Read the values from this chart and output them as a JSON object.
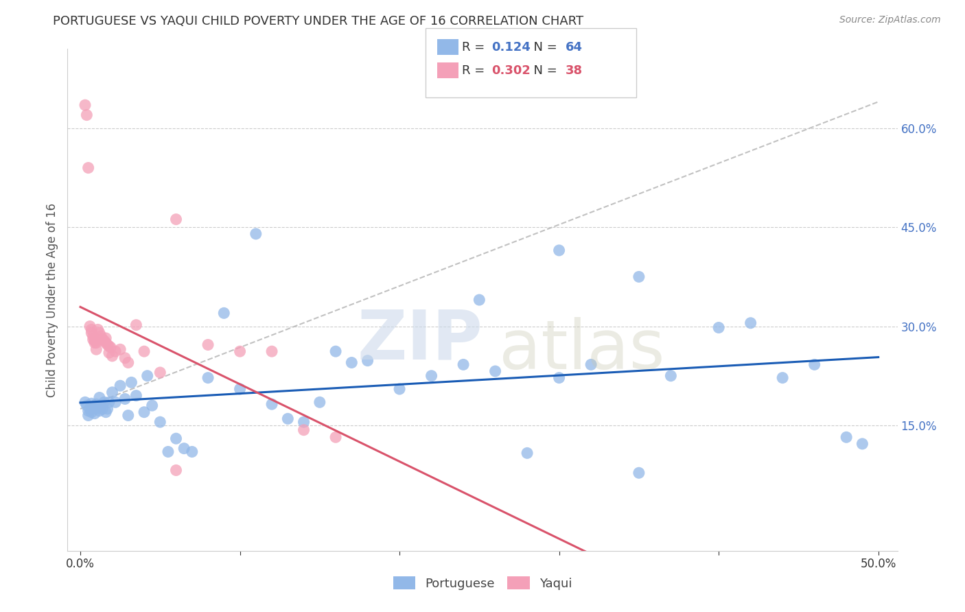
{
  "title": "PORTUGUESE VS YAQUI CHILD POVERTY UNDER THE AGE OF 16 CORRELATION CHART",
  "source": "Source: ZipAtlas.com",
  "ylabel": "Child Poverty Under the Age of 16",
  "xlim": [
    0.0,
    0.5
  ],
  "ylim": [
    0.0,
    0.7
  ],
  "blue_color": "#92b8e8",
  "pink_color": "#f4a0b8",
  "blue_line_color": "#1a5cb5",
  "pink_line_color": "#d9536b",
  "dash_line_color": "#bbbbbb",
  "bg_color": "#ffffff",
  "grid_color": "#cccccc",
  "portuguese_x": [
    0.003,
    0.004,
    0.005,
    0.005,
    0.006,
    0.007,
    0.007,
    0.008,
    0.009,
    0.01,
    0.01,
    0.011,
    0.012,
    0.012,
    0.013,
    0.014,
    0.015,
    0.016,
    0.017,
    0.018,
    0.02,
    0.022,
    0.025,
    0.028,
    0.03,
    0.032,
    0.035,
    0.04,
    0.042,
    0.045,
    0.05,
    0.055,
    0.06,
    0.065,
    0.07,
    0.08,
    0.09,
    0.1,
    0.11,
    0.12,
    0.13,
    0.14,
    0.15,
    0.16,
    0.17,
    0.18,
    0.2,
    0.22,
    0.24,
    0.26,
    0.28,
    0.3,
    0.32,
    0.35,
    0.37,
    0.4,
    0.42,
    0.44,
    0.46,
    0.48,
    0.49,
    0.25,
    0.3,
    0.35
  ],
  "portuguese_y": [
    0.185,
    0.18,
    0.172,
    0.165,
    0.175,
    0.17,
    0.183,
    0.178,
    0.168,
    0.175,
    0.182,
    0.178,
    0.172,
    0.192,
    0.18,
    0.175,
    0.185,
    0.17,
    0.175,
    0.185,
    0.2,
    0.185,
    0.21,
    0.19,
    0.165,
    0.215,
    0.195,
    0.17,
    0.225,
    0.18,
    0.155,
    0.11,
    0.13,
    0.115,
    0.11,
    0.222,
    0.32,
    0.205,
    0.44,
    0.182,
    0.16,
    0.155,
    0.185,
    0.262,
    0.245,
    0.248,
    0.205,
    0.225,
    0.242,
    0.232,
    0.108,
    0.222,
    0.242,
    0.078,
    0.225,
    0.298,
    0.305,
    0.222,
    0.242,
    0.132,
    0.122,
    0.34,
    0.415,
    0.375
  ],
  "yaqui_x": [
    0.003,
    0.004,
    0.005,
    0.006,
    0.007,
    0.007,
    0.008,
    0.008,
    0.009,
    0.009,
    0.01,
    0.01,
    0.011,
    0.012,
    0.013,
    0.014,
    0.015,
    0.016,
    0.016,
    0.017,
    0.018,
    0.018,
    0.019,
    0.02,
    0.022,
    0.025,
    0.028,
    0.03,
    0.035,
    0.04,
    0.05,
    0.06,
    0.08,
    0.1,
    0.12,
    0.14,
    0.16,
    0.06
  ],
  "yaqui_y": [
    0.635,
    0.62,
    0.54,
    0.3,
    0.295,
    0.29,
    0.285,
    0.28,
    0.278,
    0.275,
    0.275,
    0.265,
    0.295,
    0.29,
    0.285,
    0.28,
    0.278,
    0.275,
    0.282,
    0.272,
    0.26,
    0.27,
    0.268,
    0.255,
    0.262,
    0.265,
    0.252,
    0.245,
    0.302,
    0.262,
    0.23,
    0.462,
    0.272,
    0.262,
    0.262,
    0.143,
    0.132,
    0.082
  ],
  "blue_R": "0.124",
  "blue_N": "64",
  "pink_R": "0.302",
  "pink_N": "38",
  "R_color_blue": "#4472c4",
  "R_color_pink": "#d9536b",
  "text_color": "#333333",
  "source_color": "#888888",
  "ylabel_color": "#555555",
  "ytick_color": "#4472c4"
}
